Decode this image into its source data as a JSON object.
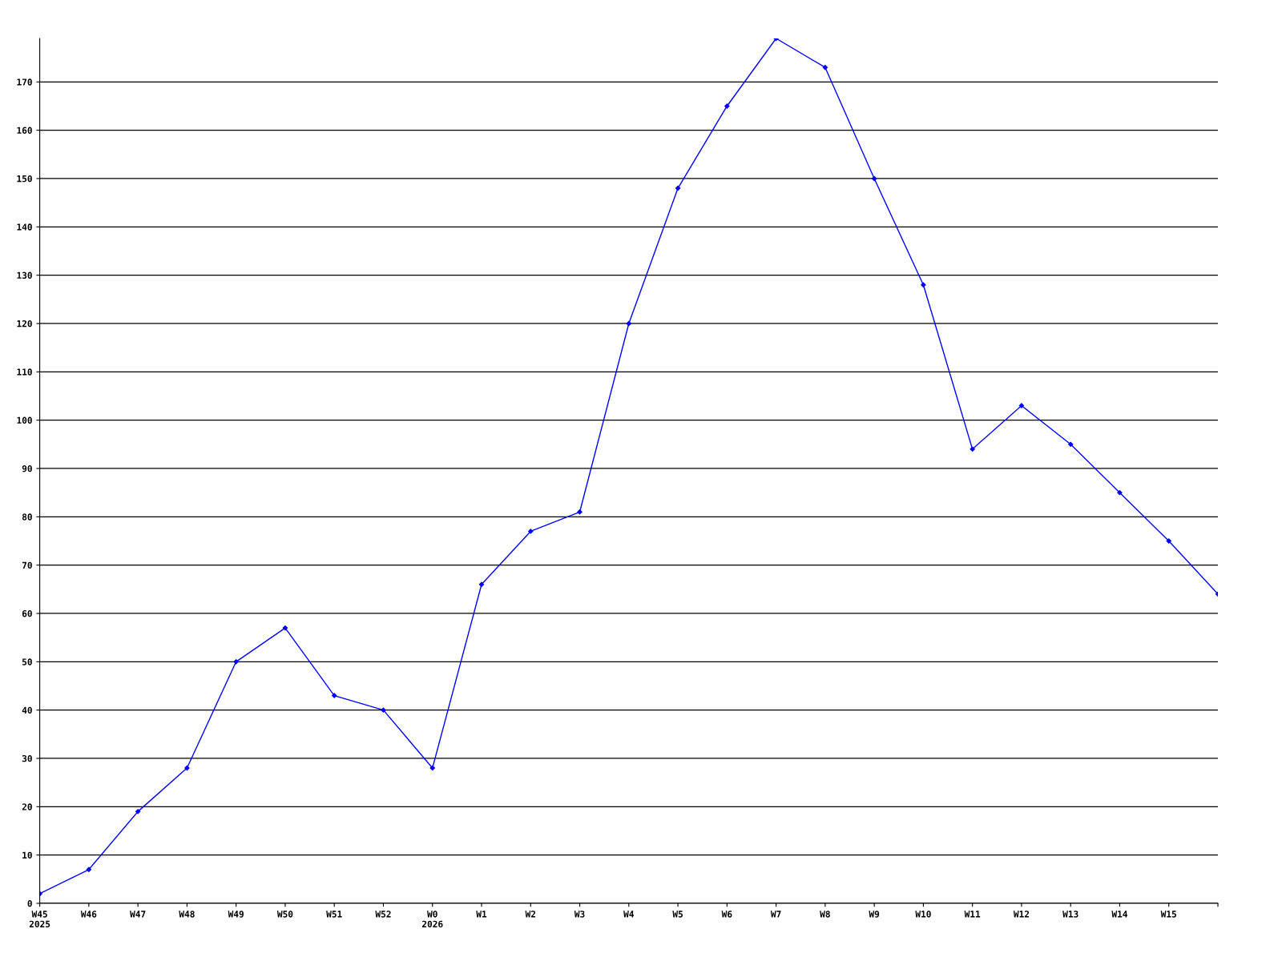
{
  "chart_data": {
    "type": "line",
    "categories": [
      "W45\n2025",
      "W46",
      "W47",
      "W48",
      "W49",
      "W50",
      "W51",
      "W52",
      "W0\n2026",
      "W1",
      "W2",
      "W3",
      "W4",
      "W5",
      "W6",
      "W7",
      "W8",
      "W9",
      "W10",
      "W11",
      "W12",
      "W13",
      "W14",
      "W15",
      null
    ],
    "series": [
      {
        "color": "#0000ff",
        "values": [
          2,
          7,
          19,
          28,
          50,
          57,
          43,
          40,
          28,
          66,
          77,
          81,
          120,
          148,
          165,
          179,
          173,
          150,
          128,
          94,
          103,
          95,
          85,
          75,
          64
        ]
      }
    ],
    "ylim": [
      0,
      179
    ],
    "yticks": [
      0,
      10,
      20,
      30,
      40,
      50,
      60,
      70,
      80,
      90,
      100,
      110,
      120,
      130,
      140,
      150,
      160,
      170
    ],
    "grid": "y",
    "marker": "diamond",
    "line_style": "solid",
    "legend": false
  }
}
